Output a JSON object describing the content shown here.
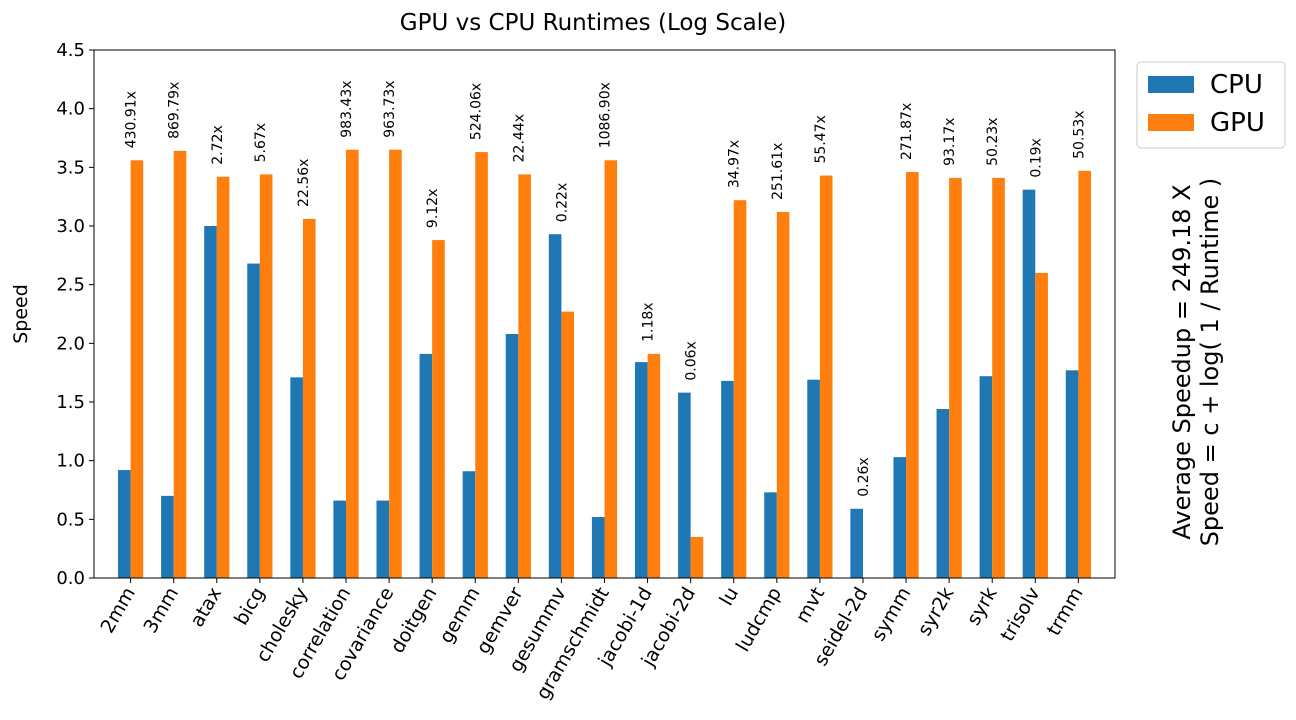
{
  "chart_data": {
    "type": "bar",
    "title": "GPU vs CPU Runtimes (Log Scale)",
    "xlabel": "",
    "ylabel": "Speed",
    "ylim": [
      0,
      4.5
    ],
    "yticks": [
      "0.0",
      "0.5",
      "1.0",
      "1.5",
      "2.0",
      "2.5",
      "3.0",
      "3.5",
      "4.0",
      "4.5"
    ],
    "grid": false,
    "legend_position": "outside-top-right",
    "categories": [
      "2mm",
      "3mm",
      "atax",
      "bicg",
      "cholesky",
      "correlation",
      "covariance",
      "doitgen",
      "gemm",
      "gemver",
      "gesummv",
      "gramschmidt",
      "jacobi-1d",
      "jacobi-2d",
      "lu",
      "ludcmp",
      "mvt",
      "seidel-2d",
      "symm",
      "syr2k",
      "syrk",
      "trisolv",
      "trmm"
    ],
    "series": [
      {
        "name": "CPU",
        "color": "#1f77b4",
        "values": [
          0.92,
          0.7,
          3.0,
          2.68,
          1.71,
          0.66,
          0.66,
          1.91,
          0.91,
          2.08,
          2.93,
          0.52,
          1.84,
          1.58,
          1.68,
          0.73,
          1.69,
          0.59,
          1.03,
          1.44,
          1.72,
          3.31,
          1.77
        ]
      },
      {
        "name": "GPU",
        "color": "#ff7f0e",
        "values": [
          3.56,
          3.64,
          3.42,
          3.44,
          3.06,
          3.65,
          3.65,
          2.88,
          3.63,
          3.44,
          2.27,
          3.56,
          1.91,
          0.35,
          3.22,
          3.12,
          3.43,
          0.0,
          3.46,
          3.41,
          3.41,
          2.6,
          3.47
        ]
      }
    ],
    "speedup_labels": [
      "430.91x",
      "869.79x",
      "2.72x",
      "5.67x",
      "22.56x",
      "983.43x",
      "963.73x",
      "9.12x",
      "524.06x",
      "22.44x",
      "0.22x",
      "1086.90x",
      "1.18x",
      "0.06x",
      "34.97x",
      "251.61x",
      "55.47x",
      "0.26x",
      "271.87x",
      "93.17x",
      "50.23x",
      "0.19x",
      "50.53x"
    ],
    "side_annotation": [
      "Average Speedup = 249.18 X",
      "Speed = c + log( 1 / Runtime )"
    ]
  }
}
